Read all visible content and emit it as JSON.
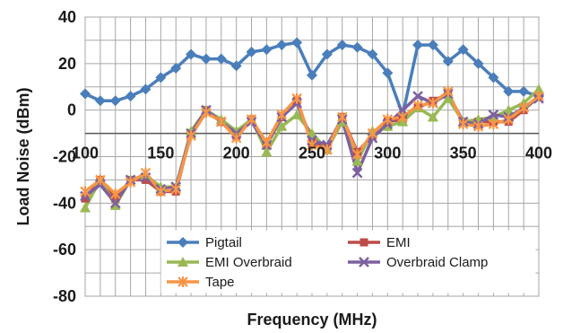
{
  "chart_data": {
    "type": "line",
    "title": "",
    "xlabel": "Frequency (MHz)",
    "ylabel": "Load Noise (dBm)",
    "xlim": [
      100,
      400
    ],
    "ylim": [
      -80,
      40
    ],
    "x_ticks": [
      "100",
      "150",
      "200",
      "250",
      "300",
      "350",
      "400"
    ],
    "y_ticks": [
      "40",
      "20",
      "0",
      "-20",
      "-40",
      "-60",
      "-80"
    ],
    "grid": true,
    "legend_position": "bottom-inside",
    "x": [
      100,
      110,
      120,
      130,
      140,
      150,
      160,
      170,
      180,
      190,
      200,
      210,
      220,
      230,
      240,
      250,
      260,
      270,
      280,
      290,
      300,
      310,
      320,
      330,
      340,
      350,
      360,
      370,
      380,
      390,
      400
    ],
    "series": [
      {
        "name": "Pigtail",
        "color": "#4a7ebb",
        "marker": "diamond",
        "values": [
          7,
          4,
          4,
          6,
          9,
          14,
          18,
          24,
          22,
          22,
          19,
          25,
          26,
          28,
          29,
          15,
          24,
          28,
          27,
          24,
          16,
          -2,
          28,
          28,
          21,
          26,
          20,
          14,
          8,
          8,
          6
        ]
      },
      {
        "name": "EMI",
        "color": "#be4b48",
        "marker": "square",
        "values": [
          -38,
          -30,
          -38,
          -30,
          -30,
          -35,
          -35,
          -10,
          0,
          -5,
          -11,
          -4,
          -15,
          -3,
          4,
          -14,
          -16,
          -3,
          -18,
          -11,
          -5,
          -4,
          1,
          4,
          7,
          -5,
          -5,
          -5,
          -5,
          0,
          6
        ]
      },
      {
        "name": "EMI Overbraid",
        "color": "#98b954",
        "marker": "triangle",
        "values": [
          -42,
          -30,
          -41,
          -30,
          -28,
          -33,
          -33,
          -9,
          0,
          -4,
          -9,
          -4,
          -18,
          -7,
          -2,
          -10,
          -17,
          -5,
          -22,
          -9,
          -7,
          -5,
          1,
          -3,
          5,
          -5,
          -4,
          -3,
          0,
          3,
          9
        ]
      },
      {
        "name": "Overbraid Clamp",
        "color": "#7d60a0",
        "marker": "x",
        "values": [
          -37,
          -32,
          -40,
          -30,
          -29,
          -34,
          -33,
          -10,
          0,
          -5,
          -10,
          -5,
          -15,
          -3,
          3,
          -13,
          -15,
          -4,
          -27,
          -12,
          -6,
          0,
          6,
          3,
          7,
          -5,
          -6,
          -2,
          -3,
          1,
          5
        ]
      },
      {
        "name": "Tape",
        "color": "#f79646",
        "marker": "asterisk",
        "values": [
          -35,
          -30,
          -36,
          -31,
          -27,
          -35,
          -34,
          -11,
          -1,
          -5,
          -12,
          -4,
          -14,
          -2,
          5,
          -15,
          -17,
          -3,
          -19,
          -10,
          -4,
          -3,
          2,
          3,
          8,
          -6,
          -7,
          -6,
          -4,
          1,
          6
        ]
      }
    ]
  }
}
